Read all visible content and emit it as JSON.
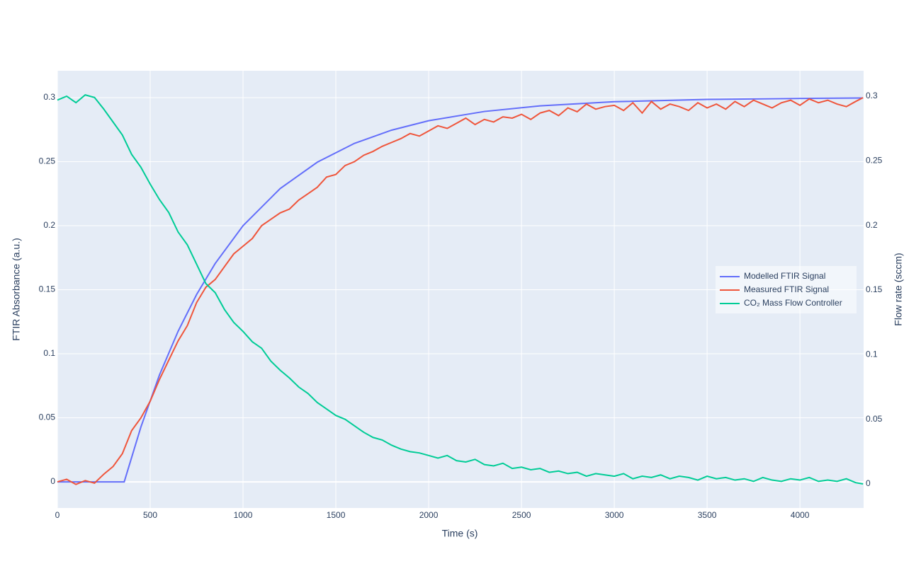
{
  "chart_data": {
    "type": "line",
    "x_label": "Time (s)",
    "y_label": "FTIR Absorbance (a.u.)",
    "y2_label": "Flow rate (sccm)",
    "xlim": [
      0,
      4343
    ],
    "xticks": [
      0,
      500,
      1000,
      1500,
      2000,
      2500,
      3000,
      3500,
      4000
    ],
    "ylim": [
      -0.0204,
      0.321
    ],
    "yticks": [
      0,
      0.05,
      0.1,
      0.15,
      0.2,
      0.25,
      0.3
    ],
    "y2lim": [
      -0.0186,
      0.3197
    ],
    "y2ticks": [
      0,
      0.05,
      0.1,
      0.15,
      0.2,
      0.25,
      0.3
    ],
    "grid": true,
    "legend_position": "right",
    "series": [
      {
        "name": "Modelled FTIR Signal",
        "color": "#636efa",
        "x": [
          0,
          360,
          450,
          550,
          650,
          750,
          850,
          1000,
          1200,
          1400,
          1600,
          1800,
          2000,
          2300,
          2600,
          3000,
          3500,
          4000,
          4340
        ],
        "values": [
          0,
          0,
          0.0429,
          0.0835,
          0.1175,
          0.1463,
          0.1705,
          0.2,
          0.229,
          0.2496,
          0.2643,
          0.2746,
          0.282,
          0.2892,
          0.2936,
          0.2968,
          0.2986,
          0.2994,
          0.2997
        ]
      },
      {
        "name": "Measured FTIR Signal",
        "color": "#ef553b",
        "x": [
          0,
          50,
          100,
          150,
          200,
          250,
          300,
          350,
          400,
          450,
          500,
          550,
          600,
          650,
          700,
          750,
          800,
          850,
          900,
          950,
          1000,
          1050,
          1100,
          1150,
          1200,
          1250,
          1300,
          1350,
          1400,
          1450,
          1500,
          1550,
          1600,
          1650,
          1700,
          1750,
          1800,
          1850,
          1900,
          1950,
          2000,
          2050,
          2100,
          2150,
          2200,
          2250,
          2300,
          2350,
          2400,
          2450,
          2500,
          2550,
          2600,
          2650,
          2700,
          2750,
          2800,
          2850,
          2900,
          2950,
          3000,
          3050,
          3100,
          3150,
          3200,
          3250,
          3300,
          3350,
          3400,
          3450,
          3500,
          3550,
          3600,
          3650,
          3700,
          3750,
          3800,
          3850,
          3900,
          3950,
          4000,
          4050,
          4100,
          4150,
          4200,
          4250,
          4300,
          4340
        ],
        "values": [
          0,
          0.002,
          -0.002,
          0.001,
          -0.001,
          0.006,
          0.012,
          0.022,
          0.04,
          0.05,
          0.063,
          0.08,
          0.095,
          0.11,
          0.122,
          0.14,
          0.152,
          0.158,
          0.168,
          0.178,
          0.184,
          0.19,
          0.2,
          0.205,
          0.21,
          0.213,
          0.22,
          0.225,
          0.23,
          0.238,
          0.24,
          0.247,
          0.25,
          0.255,
          0.258,
          0.262,
          0.265,
          0.268,
          0.272,
          0.27,
          0.274,
          0.278,
          0.276,
          0.28,
          0.284,
          0.279,
          0.283,
          0.281,
          0.285,
          0.284,
          0.287,
          0.283,
          0.288,
          0.29,
          0.286,
          0.292,
          0.289,
          0.295,
          0.291,
          0.293,
          0.294,
          0.29,
          0.296,
          0.288,
          0.297,
          0.291,
          0.295,
          0.293,
          0.29,
          0.296,
          0.292,
          0.295,
          0.291,
          0.297,
          0.293,
          0.298,
          0.295,
          0.292,
          0.296,
          0.298,
          0.294,
          0.299,
          0.296,
          0.298,
          0.295,
          0.293,
          0.297,
          0.3
        ]
      },
      {
        "name": "CO₂ Mass Flow Controller",
        "color": "#00cc96",
        "axis": "y2",
        "x": [
          0,
          50,
          100,
          150,
          200,
          250,
          300,
          350,
          400,
          450,
          500,
          550,
          600,
          650,
          700,
          750,
          800,
          850,
          900,
          950,
          1000,
          1050,
          1100,
          1150,
          1200,
          1250,
          1300,
          1350,
          1400,
          1450,
          1500,
          1550,
          1600,
          1650,
          1700,
          1750,
          1800,
          1850,
          1900,
          1950,
          2000,
          2050,
          2100,
          2150,
          2200,
          2250,
          2300,
          2350,
          2400,
          2450,
          2500,
          2550,
          2600,
          2650,
          2700,
          2750,
          2800,
          2850,
          2900,
          2950,
          3000,
          3050,
          3100,
          3150,
          3200,
          3250,
          3300,
          3350,
          3400,
          3450,
          3500,
          3550,
          3600,
          3650,
          3700,
          3750,
          3800,
          3850,
          3900,
          3950,
          4000,
          4050,
          4100,
          4150,
          4200,
          4250,
          4300,
          4340
        ],
        "values": [
          0.297,
          0.3,
          0.295,
          0.301,
          0.299,
          0.29,
          0.28,
          0.27,
          0.255,
          0.245,
          0.232,
          0.22,
          0.21,
          0.195,
          0.185,
          0.17,
          0.155,
          0.148,
          0.135,
          0.125,
          0.118,
          0.11,
          0.105,
          0.095,
          0.088,
          0.082,
          0.075,
          0.07,
          0.063,
          0.058,
          0.053,
          0.05,
          0.045,
          0.04,
          0.036,
          0.034,
          0.03,
          0.027,
          0.025,
          0.024,
          0.022,
          0.02,
          0.022,
          0.018,
          0.017,
          0.019,
          0.015,
          0.014,
          0.016,
          0.012,
          0.013,
          0.011,
          0.012,
          0.009,
          0.01,
          0.008,
          0.009,
          0.006,
          0.008,
          0.007,
          0.006,
          0.008,
          0.004,
          0.006,
          0.005,
          0.007,
          0.004,
          0.006,
          0.005,
          0.003,
          0.006,
          0.004,
          0.005,
          0.003,
          0.004,
          0.002,
          0.005,
          0.003,
          0.002,
          0.004,
          0.003,
          0.005,
          0.002,
          0.003,
          0.002,
          0.004,
          0.001,
          0
        ]
      }
    ]
  }
}
